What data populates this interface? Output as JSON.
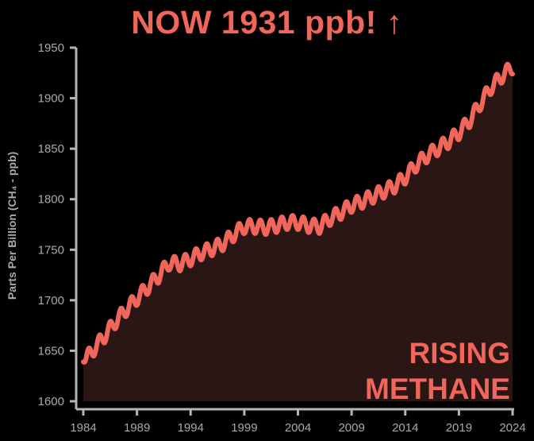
{
  "headline": "NOW 1931 ppb! ↑",
  "overlay": {
    "line1": "RISING",
    "line2": "METHANE"
  },
  "colors": {
    "background": "#000000",
    "line": "#f0665a",
    "fill": "#2b1616",
    "axis": "#b5b5b5",
    "text": "#a9a9a9",
    "accent": "#f0665a"
  },
  "chart_data": {
    "type": "area",
    "title": "NOW 1931 ppb! ↑",
    "xlabel": "",
    "ylabel": "Parts Per Billion (CH₄ - ppb)",
    "xlim": [
      1984,
      2024
    ],
    "ylim": [
      1600,
      1950
    ],
    "x_ticks": [
      "1984",
      "1989",
      "1994",
      "1999",
      "2004",
      "2009",
      "2014",
      "2019",
      "2024"
    ],
    "y_ticks": [
      "1600",
      "1650",
      "1700",
      "1750",
      "1800",
      "1850",
      "1900",
      "1950"
    ],
    "grid": false,
    "legend": "none",
    "seasonal_amplitude_ppb": 7,
    "series": [
      {
        "x": [
          1984,
          1985,
          1986,
          1987,
          1988,
          1989,
          1990,
          1991,
          1992,
          1993,
          1994,
          1995,
          1996,
          1997,
          1998,
          1999,
          2000,
          2001,
          2002,
          2003,
          2004,
          2005,
          2006,
          2007,
          2008,
          2009,
          2010,
          2011,
          2012,
          2013,
          2014,
          2015,
          2016,
          2017,
          2018,
          2019,
          2020,
          2021,
          2022,
          2023,
          2024
        ],
        "values": [
          1639,
          1652,
          1665,
          1679,
          1691,
          1702,
          1713,
          1724,
          1737,
          1736,
          1741,
          1747,
          1751,
          1756,
          1765,
          1773,
          1773,
          1772,
          1774,
          1777,
          1777,
          1774,
          1773,
          1781,
          1787,
          1794,
          1798,
          1803,
          1808,
          1813,
          1822,
          1834,
          1843,
          1850,
          1857,
          1866,
          1878,
          1895,
          1911,
          1922,
          1931
        ]
      }
    ]
  }
}
